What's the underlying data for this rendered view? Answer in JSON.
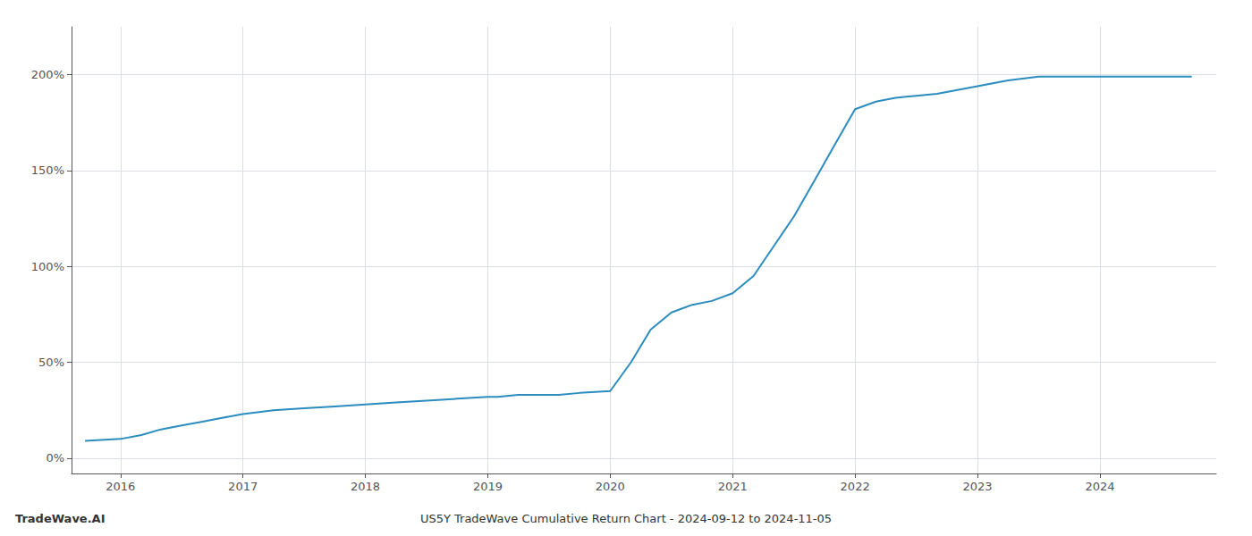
{
  "chart_data": {
    "type": "line",
    "title": "US5Y TradeWave Cumulative Return Chart - 2024-09-12 to 2024-11-05",
    "annotations": [
      "TradeWave.AI"
    ],
    "x": [
      2015.71,
      2016.0,
      2016.17,
      2016.33,
      2016.5,
      2016.67,
      2016.83,
      2017.0,
      2017.25,
      2017.5,
      2017.75,
      2018.0,
      2018.25,
      2018.5,
      2018.75,
      2019.0,
      2019.08,
      2019.25,
      2019.42,
      2019.58,
      2019.75,
      2020.0,
      2020.17,
      2020.33,
      2020.5,
      2020.67,
      2020.83,
      2021.0,
      2021.17,
      2021.33,
      2021.5,
      2021.67,
      2021.83,
      2022.0,
      2022.17,
      2022.33,
      2022.5,
      2022.67,
      2023.0,
      2023.25,
      2023.5,
      2023.75,
      2024.0,
      2024.25,
      2024.5,
      2024.75
    ],
    "values": [
      9,
      10,
      12,
      15,
      17,
      19,
      21,
      23,
      25,
      26,
      27,
      28,
      29,
      30,
      31,
      32,
      32,
      33,
      33,
      33,
      34,
      35,
      50,
      67,
      76,
      80,
      82,
      86,
      95,
      110,
      126,
      145,
      163,
      182,
      186,
      188,
      189,
      190,
      194,
      197,
      199,
      199,
      199,
      199,
      199,
      199
    ],
    "color": "#2b8cbe",
    "xlim": [
      2015.6,
      2024.95
    ],
    "xticks": [
      2016,
      2017,
      2018,
      2019,
      2020,
      2021,
      2022,
      2023,
      2024
    ],
    "ylim": [
      -8,
      225
    ],
    "yticks": [
      {
        "value": 0,
        "label": "0%"
      },
      {
        "value": 50,
        "label": "50%"
      },
      {
        "value": 100,
        "label": "100%"
      },
      {
        "value": 150,
        "label": "150%"
      },
      {
        "value": 200,
        "label": "200%"
      }
    ],
    "grid": true
  }
}
